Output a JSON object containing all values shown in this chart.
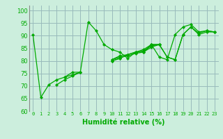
{
  "xlabel": "Humidité relative (%)",
  "bg_color": "#cceedd",
  "grid_color": "#99bbbb",
  "line_color": "#00aa00",
  "xlim": [
    -0.5,
    23.5
  ],
  "ylim": [
    60,
    102
  ],
  "yticks": [
    60,
    65,
    70,
    75,
    80,
    85,
    90,
    95,
    100
  ],
  "xticks": [
    0,
    1,
    2,
    3,
    4,
    5,
    6,
    7,
    8,
    9,
    10,
    11,
    12,
    13,
    14,
    15,
    16,
    17,
    18,
    19,
    20,
    21,
    22,
    23
  ],
  "series": [
    [
      90.5,
      65.5,
      70.5,
      72.5,
      73.5,
      75.5,
      75.5,
      95.5,
      92.0,
      86.5,
      84.5,
      83.5,
      81.0,
      83.5,
      83.5,
      86.5,
      81.5,
      80.5,
      90.5,
      93.5,
      94.5,
      91.5,
      92.0,
      91.5
    ],
    [
      null,
      null,
      null,
      70.5,
      72.5,
      74.0,
      75.5,
      null,
      null,
      null,
      80.5,
      81.5,
      82.0,
      83.0,
      83.5,
      86.5,
      86.5,
      null,
      null,
      null,
      null,
      null,
      null,
      null
    ],
    [
      null,
      null,
      null,
      null,
      73.5,
      74.5,
      75.5,
      null,
      null,
      null,
      80.0,
      81.0,
      82.5,
      null,
      83.5,
      85.5,
      86.5,
      null,
      null,
      null,
      null,
      null,
      null,
      null
    ],
    [
      null,
      null,
      null,
      null,
      null,
      null,
      null,
      null,
      null,
      null,
      80.0,
      81.0,
      82.5,
      83.5,
      84.0,
      86.0,
      86.5,
      81.5,
      80.5,
      90.5,
      93.5,
      90.5,
      91.5,
      91.5
    ],
    [
      null,
      null,
      null,
      null,
      null,
      null,
      null,
      null,
      null,
      null,
      80.5,
      82.0,
      82.5,
      83.5,
      84.5,
      86.5,
      86.5,
      81.5,
      80.5,
      90.5,
      93.5,
      91.0,
      92.0,
      91.5
    ]
  ]
}
